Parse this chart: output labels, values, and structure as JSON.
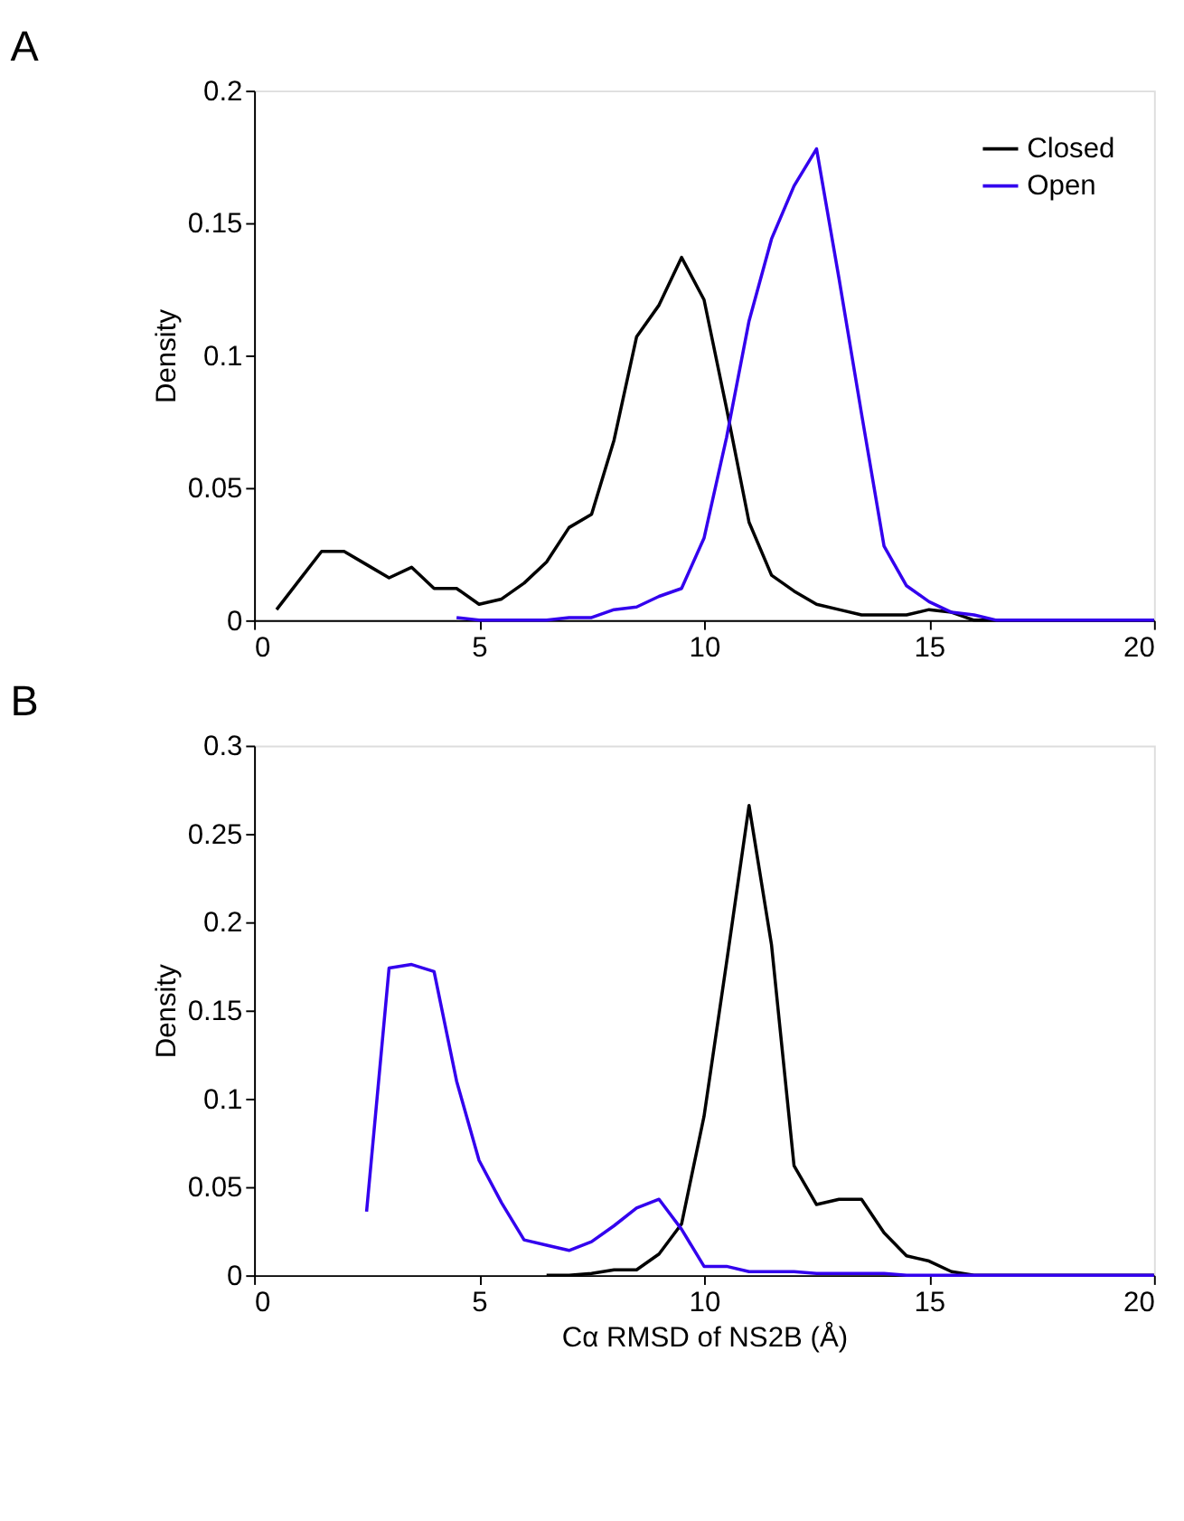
{
  "chart_data": [
    {
      "type": "line",
      "title": "A",
      "ylabel": "Density",
      "xlim": [
        0,
        20
      ],
      "xticks": [
        0,
        5,
        10,
        15,
        20
      ],
      "ylim": [
        0,
        0.2
      ],
      "yticks": [
        0,
        0.05,
        0.1,
        0.15,
        0.2
      ],
      "legend": "top right",
      "grid": false,
      "series": [
        {
          "name": "Closed",
          "color": "#000000",
          "x": [
            0.5,
            1,
            1.5,
            2,
            2.5,
            3,
            3.5,
            4,
            4.5,
            5,
            5.5,
            6,
            6.5,
            7,
            7.5,
            8,
            8.5,
            9,
            9.5,
            10,
            10.5,
            11,
            11.5,
            12,
            12.5,
            13,
            13.5,
            14,
            14.5,
            15,
            15.5,
            16,
            20
          ],
          "values": [
            0.004,
            0.015,
            0.026,
            0.026,
            0.021,
            0.016,
            0.02,
            0.012,
            0.012,
            0.006,
            0.008,
            0.014,
            0.022,
            0.035,
            0.04,
            0.068,
            0.107,
            0.119,
            0.137,
            0.121,
            0.08,
            0.037,
            0.017,
            0.011,
            0.006,
            0.004,
            0.002,
            0.002,
            0.002,
            0.004,
            0.003,
            0,
            0
          ]
        },
        {
          "name": "Open",
          "color": "#3300ee",
          "x": [
            4.5,
            5,
            5.5,
            6,
            6.5,
            7,
            7.5,
            8,
            8.5,
            9,
            9.5,
            10,
            10.5,
            11,
            11.5,
            12,
            12.5,
            13,
            13.5,
            14,
            14.5,
            15,
            15.5,
            16,
            16.5,
            20
          ],
          "values": [
            0.001,
            0,
            0,
            0,
            0,
            0.001,
            0.001,
            0.004,
            0.005,
            0.009,
            0.012,
            0.031,
            0.069,
            0.113,
            0.144,
            0.164,
            0.178,
            0.129,
            0.078,
            0.028,
            0.013,
            0.007,
            0.003,
            0.002,
            0,
            0
          ]
        }
      ]
    },
    {
      "type": "line",
      "title": "B",
      "xlabel": "Cα RMSD of NS2B (Å)",
      "ylabel": "Density",
      "xlim": [
        0,
        20
      ],
      "xticks": [
        0,
        5,
        10,
        15,
        20
      ],
      "ylim": [
        0,
        0.3
      ],
      "yticks": [
        0,
        0.05,
        0.1,
        0.15,
        0.2,
        0.25,
        0.3
      ],
      "legend": "top right",
      "grid": false,
      "series": [
        {
          "name": "Closed",
          "color": "#000000",
          "x": [
            6.5,
            7,
            7.5,
            8,
            8.5,
            9,
            9.5,
            10,
            10.5,
            11,
            11.5,
            12,
            12.5,
            13,
            13.5,
            14,
            14.5,
            15,
            15.5,
            16,
            20
          ],
          "values": [
            0,
            0,
            0.001,
            0.003,
            0.003,
            0.012,
            0.029,
            0.09,
            0.177,
            0.266,
            0.187,
            0.062,
            0.04,
            0.043,
            0.043,
            0.024,
            0.011,
            0.008,
            0.002,
            0,
            0
          ]
        },
        {
          "name": "Open",
          "color": "#3300ee",
          "x": [
            2.5,
            3,
            3.5,
            4,
            4.5,
            5,
            5.5,
            6,
            6.5,
            7,
            7.5,
            8,
            8.5,
            9,
            9.5,
            10,
            10.5,
            11,
            11.5,
            12,
            12.5,
            13,
            13.5,
            14,
            14.5,
            20
          ],
          "values": [
            0.036,
            0.174,
            0.176,
            0.172,
            0.11,
            0.065,
            0.041,
            0.02,
            0.017,
            0.014,
            0.019,
            0.028,
            0.038,
            0.043,
            0.026,
            0.005,
            0.005,
            0.002,
            0.002,
            0.002,
            0.001,
            0.001,
            0.001,
            0.001,
            0,
            0
          ]
        }
      ]
    }
  ]
}
